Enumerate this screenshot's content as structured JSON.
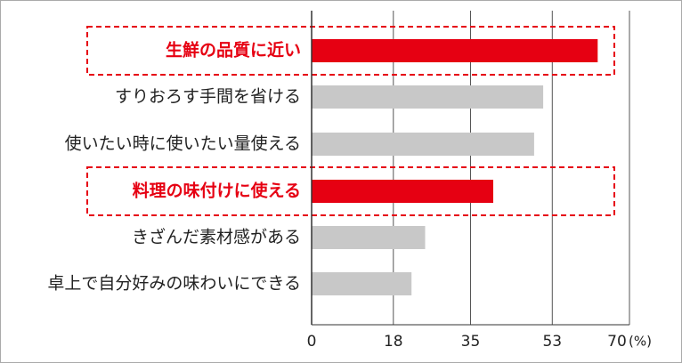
{
  "chart_data": {
    "type": "bar",
    "orientation": "horizontal",
    "categories": [
      "生鮮の品質に近い",
      "すりおろす手間を省ける",
      "使いたい時に使いたい量使える",
      "料理の味付けに使える",
      "きざんだ素材感がある",
      "卓上で自分好みの味わいにできる"
    ],
    "values": [
      63,
      51,
      49,
      40,
      25,
      22
    ],
    "colors": [
      "#e60012",
      "#c8c8c8",
      "#c8c8c8",
      "#e60012",
      "#c8c8c8",
      "#c8c8c8"
    ],
    "highlight_color": "#e60012",
    "xlim": [
      0,
      70
    ],
    "xticks": [
      0,
      18,
      35,
      53,
      70
    ],
    "unit": "(%)",
    "grid": true
  }
}
